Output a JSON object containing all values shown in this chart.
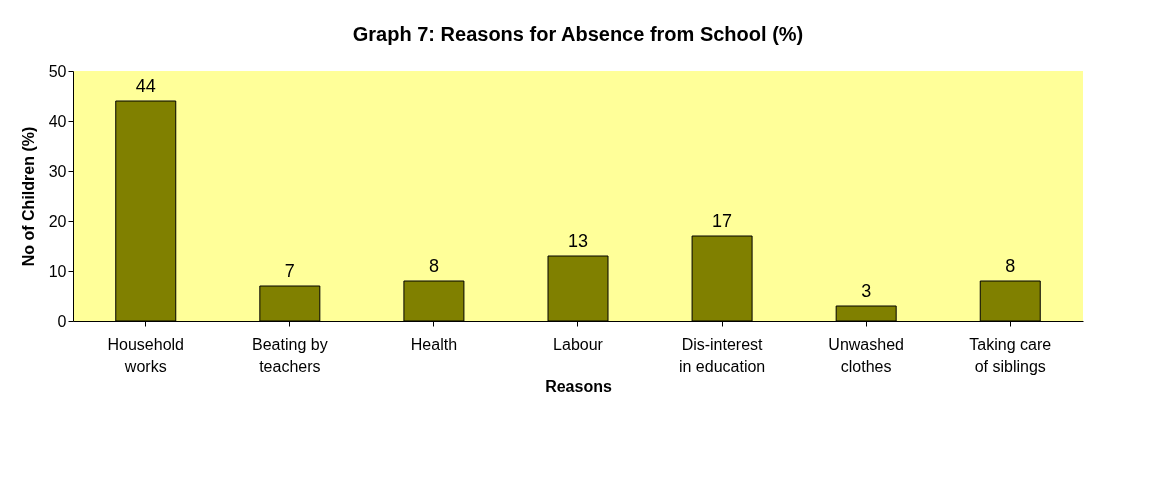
{
  "chart_data": {
    "type": "bar",
    "title": "Graph 7: Reasons for Absence from School (%)",
    "xlabel": "Reasons",
    "ylabel": "No of Children (%)",
    "categories": [
      "Household works",
      "Beating by teachers",
      "Health",
      "Labour",
      "Dis-interest in education",
      "Unwashed clothes",
      "Taking care of siblings"
    ],
    "values": [
      44,
      7,
      8,
      13,
      17,
      3,
      8
    ],
    "color": "#808000",
    "ylim": [
      0,
      50
    ],
    "yticks": [
      0,
      10,
      20,
      30,
      40,
      50
    ],
    "grid": false,
    "data_labels": true
  }
}
